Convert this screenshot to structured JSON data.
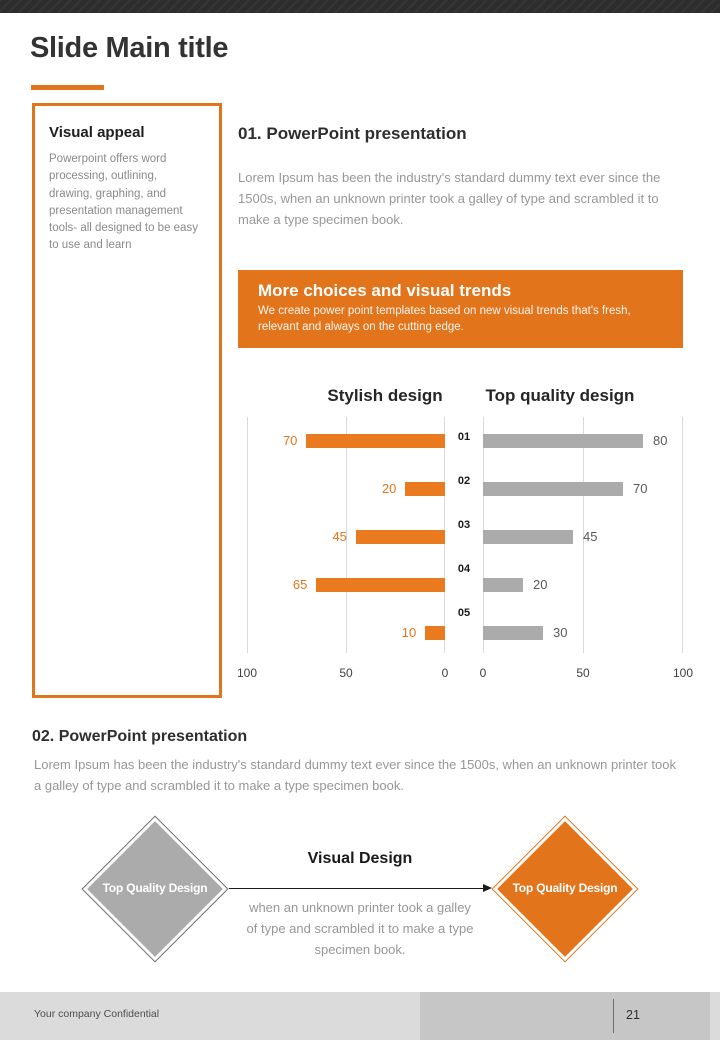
{
  "header": {
    "title": "Slide Main title"
  },
  "sidebar": {
    "title": "Visual appeal",
    "body": "Powerpoint offers word processing, outlining, drawing, graphing, and presentation management tools- all designed to be easy to use and learn"
  },
  "section1": {
    "heading": "01. PowerPoint presentation",
    "paragraph": "Lorem Ipsum has been the industry's standard dummy text ever since the 1500s, when an unknown printer took a galley of type and scrambled it to make a type specimen book."
  },
  "banner": {
    "title": "More choices and visual trends",
    "subtitle": "We create power point templates based on new visual trends that's fresh, relevant and always on the cutting edge."
  },
  "chart_data": {
    "type": "bar",
    "orientation": "horizontal",
    "categories": [
      "01",
      "02",
      "03",
      "04",
      "05"
    ],
    "series": [
      {
        "name": "Stylish design",
        "values": [
          70,
          20,
          45,
          65,
          10
        ],
        "color": "#ea7a1f",
        "value_label_color": "#e2741c",
        "direction": "right-to-left"
      },
      {
        "name": "Top quality design",
        "values": [
          80,
          70,
          45,
          20,
          30
        ],
        "color": "#ababab",
        "value_label_color": "#595959",
        "direction": "left-to-right"
      }
    ],
    "xlim": [
      0,
      100
    ],
    "axis_ticks_left": [
      "100",
      "50",
      "0"
    ],
    "axis_ticks_right": [
      "0",
      "50",
      "100"
    ],
    "grid": true,
    "legend_position": "none"
  },
  "section2": {
    "heading": "02. PowerPoint presentation",
    "paragraph": "Lorem Ipsum has been the industry's standard dummy text ever since the 1500s, when an unknown printer took a galley of type and scrambled it to make a type specimen book."
  },
  "diagram": {
    "left_diamond": {
      "label": "Top Quality Design",
      "fill": "#ababab"
    },
    "right_diamond": {
      "label": "Top Quality Design",
      "fill": "#e2741c"
    },
    "center": {
      "heading": "Visual Design",
      "paragraph": "when an unknown printer took a galley of type and scrambled it to make a type specimen book."
    }
  },
  "footer": {
    "left_text": "Your company Confidential",
    "page_number": "21"
  },
  "colors": {
    "accent_orange": "#e2741c",
    "bar_orange": "#ea7a1f",
    "bar_gray": "#ababab",
    "topbar": "#2d2d2d",
    "body_text": "#979797",
    "footer_bg": "#dbdbdb",
    "footer_box": "#c6c6c6"
  }
}
